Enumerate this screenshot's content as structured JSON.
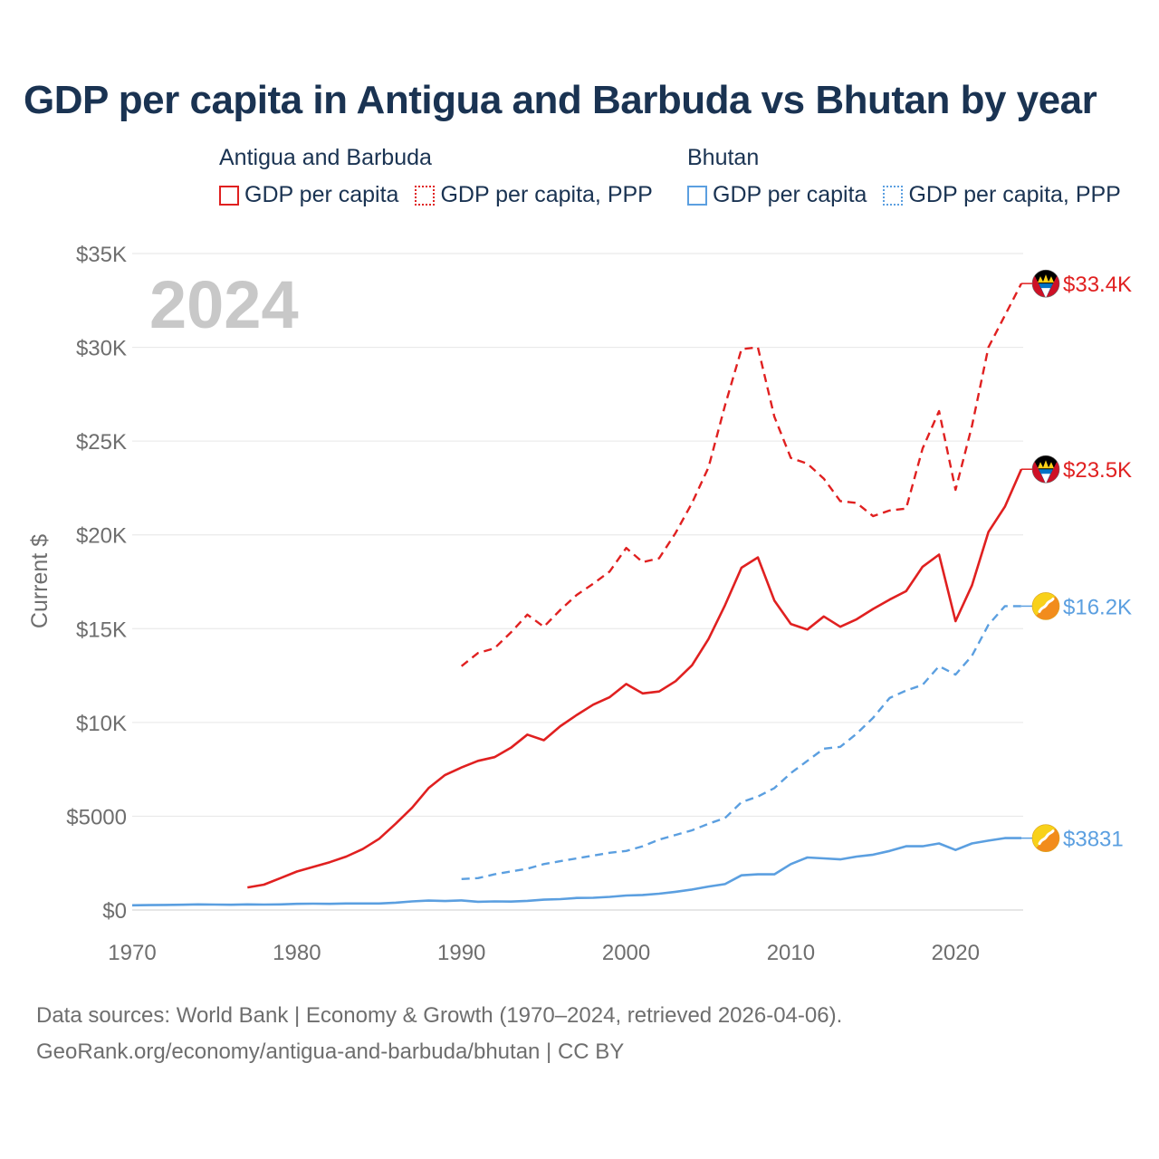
{
  "chart_data": {
    "type": "line",
    "title": "GDP per capita in Antigua and Barbuda vs Bhutan by year",
    "ylabel": "Current $",
    "xlabel": "",
    "year_label": "2024",
    "xlim": [
      1970,
      2024
    ],
    "ylim": [
      0,
      35000
    ],
    "grid": true,
    "x_ticks": [
      {
        "value": 1970,
        "label": "1970"
      },
      {
        "value": 1980,
        "label": "1980"
      },
      {
        "value": 1990,
        "label": "1990"
      },
      {
        "value": 2000,
        "label": "2000"
      },
      {
        "value": 2010,
        "label": "2010"
      },
      {
        "value": 2020,
        "label": "2020"
      }
    ],
    "y_ticks": [
      {
        "value": 0,
        "label": "$0"
      },
      {
        "value": 5000,
        "label": "$5000"
      },
      {
        "value": 10000,
        "label": "$10K"
      },
      {
        "value": 15000,
        "label": "$15K"
      },
      {
        "value": 20000,
        "label": "$20K"
      },
      {
        "value": 25000,
        "label": "$25K"
      },
      {
        "value": 30000,
        "label": "$30K"
      },
      {
        "value": 35000,
        "label": "$35K"
      }
    ],
    "legend": {
      "groups": [
        {
          "title": "Antigua and Barbuda",
          "color": "#e02020",
          "items": [
            "GDP per capita",
            "GDP per capita, PPP"
          ]
        },
        {
          "title": "Bhutan",
          "color": "#5b9fe0",
          "items": [
            "GDP per capita",
            "GDP per capita, PPP"
          ]
        }
      ]
    },
    "series": [
      {
        "name": "Antigua and Barbuda GDP per capita, PPP",
        "country": "Antigua and Barbuda",
        "color": "#e02020",
        "dashed": true,
        "end_label": "$33.4K",
        "flag": "antigua",
        "x": [
          1990,
          1991,
          1992,
          1993,
          1994,
          1995,
          1996,
          1997,
          1998,
          1999,
          2000,
          2001,
          2002,
          2003,
          2004,
          2005,
          2006,
          2007,
          2008,
          2009,
          2010,
          2011,
          2012,
          2013,
          2014,
          2015,
          2016,
          2017,
          2018,
          2019,
          2020,
          2021,
          2022,
          2023,
          2024
        ],
        "y": [
          13000,
          13700,
          13950,
          14800,
          15750,
          15100,
          16000,
          16800,
          17400,
          18050,
          19300,
          18550,
          18750,
          20100,
          21700,
          23600,
          26900,
          29900,
          30000,
          26300,
          24100,
          23800,
          23000,
          21800,
          21700,
          21000,
          21300,
          21400,
          24600,
          26600,
          22400,
          25800,
          30000,
          31700,
          33400
        ]
      },
      {
        "name": "Antigua and Barbuda GDP per capita",
        "country": "Antigua and Barbuda",
        "color": "#e02020",
        "dashed": false,
        "end_label": "$23.5K",
        "flag": "antigua",
        "x": [
          1977,
          1978,
          1979,
          1980,
          1981,
          1982,
          1983,
          1984,
          1985,
          1986,
          1987,
          1988,
          1989,
          1990,
          1991,
          1992,
          1993,
          1994,
          1995,
          1996,
          1997,
          1998,
          1999,
          2000,
          2001,
          2002,
          2003,
          2004,
          2005,
          2006,
          2007,
          2008,
          2009,
          2010,
          2011,
          2012,
          2013,
          2014,
          2015,
          2016,
          2017,
          2018,
          2019,
          2020,
          2021,
          2022,
          2023,
          2024
        ],
        "y": [
          1200,
          1350,
          1700,
          2050,
          2300,
          2550,
          2850,
          3250,
          3800,
          4600,
          5450,
          6500,
          7200,
          7600,
          7950,
          8150,
          8650,
          9350,
          9050,
          9800,
          10400,
          10950,
          11350,
          12050,
          11550,
          11650,
          12200,
          13050,
          14450,
          16250,
          18250,
          18800,
          16500,
          15250,
          14950,
          15650,
          15100,
          15500,
          16050,
          16550,
          17000,
          18300,
          18950,
          15400,
          17300,
          20150,
          21500,
          23500
        ]
      },
      {
        "name": "Bhutan GDP per capita, PPP",
        "country": "Bhutan",
        "color": "#5b9fe0",
        "dashed": true,
        "end_label": "$16.2K",
        "flag": "bhutan",
        "x": [
          1990,
          1991,
          1992,
          1993,
          1994,
          1995,
          1996,
          1997,
          1998,
          1999,
          2000,
          2001,
          2002,
          2003,
          2004,
          2005,
          2006,
          2007,
          2008,
          2009,
          2010,
          2011,
          2012,
          2013,
          2014,
          2015,
          2016,
          2017,
          2018,
          2019,
          2020,
          2021,
          2022,
          2023,
          2024
        ],
        "y": [
          1650,
          1700,
          1900,
          2050,
          2200,
          2450,
          2600,
          2750,
          2900,
          3050,
          3150,
          3400,
          3750,
          4000,
          4250,
          4600,
          4900,
          5750,
          6050,
          6500,
          7300,
          7950,
          8600,
          8700,
          9400,
          10250,
          11300,
          11700,
          12000,
          13000,
          12550,
          13550,
          15200,
          16200,
          16200
        ]
      },
      {
        "name": "Bhutan GDP per capita",
        "country": "Bhutan",
        "color": "#5b9fe0",
        "dashed": false,
        "end_label": "$3831",
        "flag": "bhutan",
        "x": [
          1970,
          1971,
          1972,
          1973,
          1974,
          1975,
          1976,
          1977,
          1978,
          1979,
          1980,
          1981,
          1982,
          1983,
          1984,
          1985,
          1986,
          1987,
          1988,
          1989,
          1990,
          1991,
          1992,
          1993,
          1994,
          1995,
          1996,
          1997,
          1998,
          1999,
          2000,
          2001,
          2002,
          2003,
          2004,
          2005,
          2006,
          2007,
          2008,
          2009,
          2010,
          2011,
          2012,
          2013,
          2014,
          2015,
          2016,
          2017,
          2018,
          2019,
          2020,
          2021,
          2022,
          2023,
          2024
        ],
        "y": [
          250,
          260,
          270,
          280,
          300,
          290,
          280,
          300,
          290,
          300,
          330,
          340,
          330,
          350,
          350,
          350,
          390,
          460,
          500,
          480,
          510,
          440,
          460,
          450,
          490,
          550,
          580,
          640,
          650,
          700,
          770,
          800,
          870,
          970,
          1090,
          1250,
          1380,
          1850,
          1900,
          1900,
          2450,
          2800,
          2750,
          2700,
          2850,
          2950,
          3150,
          3400,
          3400,
          3550,
          3200,
          3550,
          3700,
          3831,
          3831
        ]
      }
    ]
  },
  "sources": {
    "line1": "Data sources: World Bank | Economy & Growth (1970–2024, retrieved 2026-04-06).",
    "line2": "GeoRank.org/economy/antigua-and-barbuda/bhutan | CC BY"
  },
  "colors": {
    "antigua": "#e02020",
    "bhutan": "#5b9fe0",
    "title": "#1a3352",
    "axis_text": "#6e6e6e",
    "grid": "#e6e6e6",
    "year_watermark": "#c8c8c8"
  }
}
